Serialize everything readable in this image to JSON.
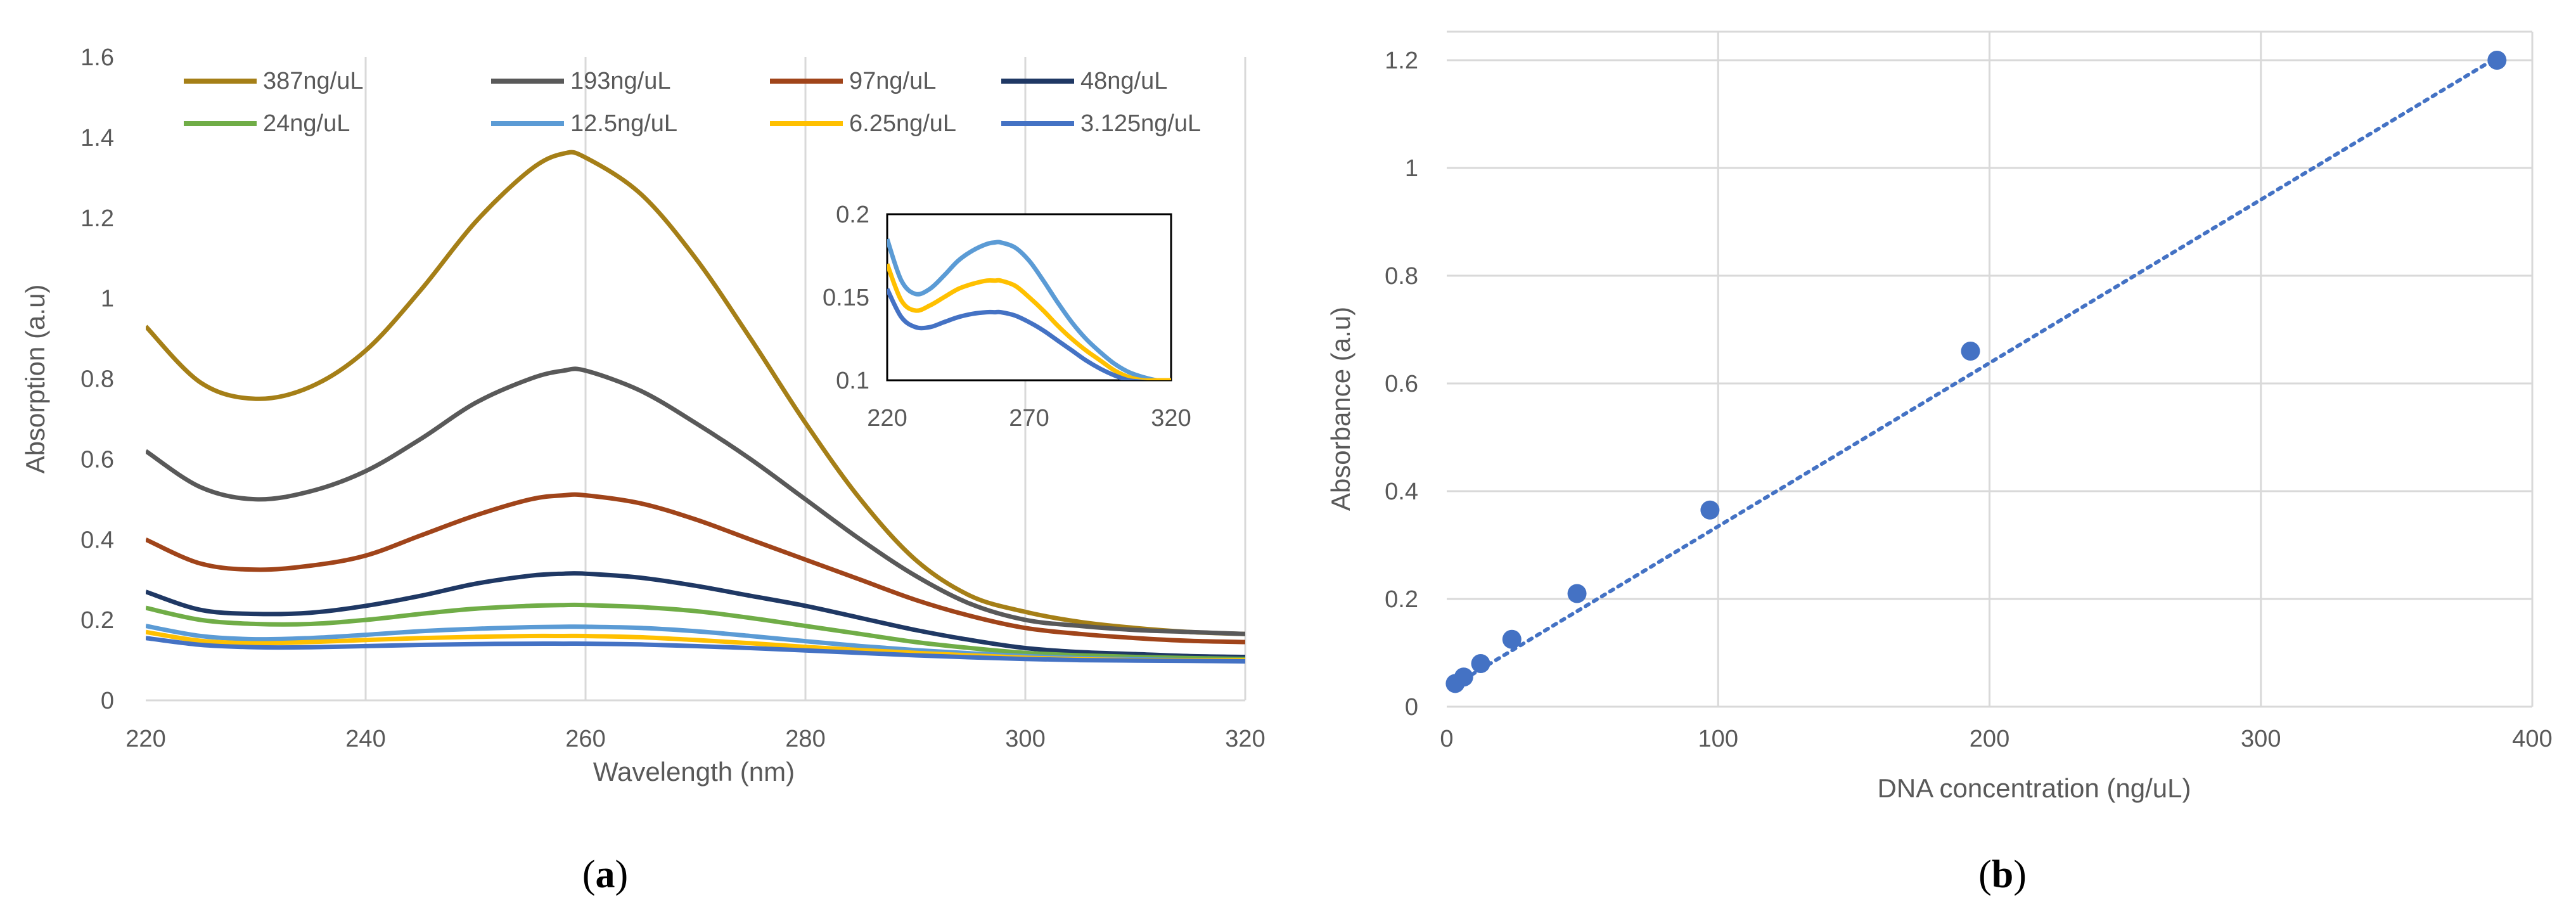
{
  "chart_data": [
    {
      "type": "line",
      "panel_label": "a",
      "title": "",
      "xlabel": "Wavelength (nm)",
      "ylabel": "Absorption (a.u)",
      "xlim": [
        220,
        320
      ],
      "ylim": [
        0,
        1.6
      ],
      "xticks": [
        220,
        240,
        260,
        280,
        300,
        320
      ],
      "yticks": [
        0,
        0.2,
        0.4,
        0.6,
        0.8,
        1,
        1.2,
        1.4,
        1.6
      ],
      "xtick_labels": [
        "220",
        "240",
        "260",
        "280",
        "300",
        "320"
      ],
      "ytick_labels": [
        "0",
        "0.2",
        "0.4",
        "0.6",
        "0.8",
        "1",
        "1.2",
        "1.4",
        "1.6"
      ],
      "grid": "vertical",
      "legend_position": "top",
      "x": [
        220,
        225,
        230,
        235,
        240,
        245,
        250,
        255,
        258,
        260,
        265,
        270,
        275,
        280,
        285,
        290,
        295,
        300,
        305,
        310,
        315,
        320
      ],
      "series": [
        {
          "name": "387ng/uL",
          "color": "#A57F17",
          "values": [
            0.93,
            0.79,
            0.75,
            0.78,
            0.87,
            1.02,
            1.19,
            1.32,
            1.36,
            1.35,
            1.26,
            1.1,
            0.9,
            0.69,
            0.5,
            0.35,
            0.26,
            0.22,
            0.195,
            0.18,
            0.17,
            0.165
          ]
        },
        {
          "name": "193ng/uL",
          "color": "#595959",
          "values": [
            0.62,
            0.53,
            0.5,
            0.52,
            0.57,
            0.65,
            0.74,
            0.8,
            0.82,
            0.82,
            0.77,
            0.69,
            0.6,
            0.5,
            0.4,
            0.31,
            0.24,
            0.2,
            0.185,
            0.175,
            0.17,
            0.165
          ]
        },
        {
          "name": "97ng/uL",
          "color": "#A0441A",
          "values": [
            0.4,
            0.34,
            0.325,
            0.335,
            0.36,
            0.41,
            0.46,
            0.5,
            0.51,
            0.51,
            0.49,
            0.45,
            0.4,
            0.35,
            0.3,
            0.25,
            0.21,
            0.18,
            0.165,
            0.155,
            0.148,
            0.145
          ]
        },
        {
          "name": "48ng/uL",
          "color": "#1F3864",
          "values": [
            0.27,
            0.225,
            0.215,
            0.218,
            0.235,
            0.26,
            0.29,
            0.31,
            0.315,
            0.315,
            0.305,
            0.285,
            0.26,
            0.235,
            0.205,
            0.175,
            0.15,
            0.13,
            0.12,
            0.115,
            0.11,
            0.108
          ]
        },
        {
          "name": "24ng/uL",
          "color": "#70AD47",
          "values": [
            0.23,
            0.2,
            0.19,
            0.19,
            0.2,
            0.215,
            0.228,
            0.235,
            0.237,
            0.237,
            0.232,
            0.222,
            0.205,
            0.185,
            0.165,
            0.145,
            0.13,
            0.118,
            0.112,
            0.108,
            0.105,
            0.103
          ]
        },
        {
          "name": "12.5ng/uL",
          "color": "#5B9BD5",
          "values": [
            0.185,
            0.16,
            0.152,
            0.155,
            0.163,
            0.172,
            0.178,
            0.182,
            0.183,
            0.183,
            0.18,
            0.172,
            0.16,
            0.147,
            0.135,
            0.125,
            0.117,
            0.11,
            0.105,
            0.102,
            0.1,
            0.1
          ]
        },
        {
          "name": "6.25ng/uL",
          "color": "#FFC000",
          "values": [
            0.17,
            0.148,
            0.142,
            0.145,
            0.15,
            0.155,
            0.158,
            0.16,
            0.16,
            0.16,
            0.157,
            0.15,
            0.142,
            0.133,
            0.125,
            0.118,
            0.112,
            0.106,
            0.102,
            0.1,
            0.1,
            0.1
          ]
        },
        {
          "name": "3.125ng/uL",
          "color": "#4472C4",
          "values": [
            0.155,
            0.138,
            0.132,
            0.132,
            0.135,
            0.138,
            0.14,
            0.141,
            0.141,
            0.141,
            0.139,
            0.135,
            0.13,
            0.124,
            0.118,
            0.112,
            0.107,
            0.103,
            0.1,
            0.099,
            0.098,
            0.097
          ]
        }
      ],
      "inset": {
        "xlim": [
          220,
          320
        ],
        "ylim": [
          0.1,
          0.2
        ],
        "xticks": [
          220,
          270,
          320
        ],
        "yticks": [
          0.1,
          0.15,
          0.2
        ],
        "xtick_labels": [
          "220",
          "270",
          "320"
        ],
        "ytick_labels": [
          "0.1",
          "0.15",
          "0.2"
        ],
        "series_names": [
          "12.5ng/uL",
          "6.25ng/uL",
          "3.125ng/uL"
        ]
      }
    },
    {
      "type": "scatter",
      "panel_label": "b",
      "title": "",
      "xlabel": "DNA concentration (ng/uL)",
      "ylabel": "Absorbance (a.u)",
      "xlim": [
        0,
        400
      ],
      "ylim": [
        0,
        1.2
      ],
      "xticks": [
        0,
        100,
        200,
        300,
        400
      ],
      "yticks": [
        0,
        0.2,
        0.4,
        0.6,
        0.8,
        1,
        1.2
      ],
      "xtick_labels": [
        "0",
        "100",
        "200",
        "300",
        "400"
      ],
      "ytick_labels": [
        "0",
        "0.2",
        "0.4",
        "0.6",
        "0.8",
        "1",
        "1.2"
      ],
      "grid": "both",
      "color": "#4472C4",
      "x": [
        3.125,
        6.25,
        12.5,
        24,
        48,
        97,
        193,
        387
      ],
      "y": [
        0.043,
        0.055,
        0.08,
        0.125,
        0.21,
        0.365,
        0.66,
        1.2
      ],
      "trendline": {
        "type": "linear",
        "style": "dotted",
        "x": [
          3.125,
          387
        ],
        "y": [
          0.041,
          1.205
        ]
      }
    }
  ]
}
